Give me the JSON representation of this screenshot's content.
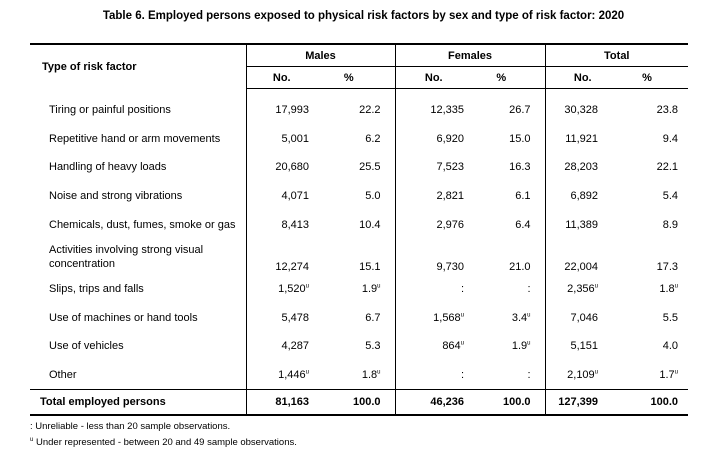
{
  "title": "Table 6. Employed persons exposed to physical risk factors by sex and type of risk factor: 2020",
  "header": {
    "row_label": "Type of risk factor",
    "groups": [
      "Males",
      "Females",
      "Total"
    ],
    "no": "No.",
    "pct": "%"
  },
  "rows": [
    {
      "label": "Tiring or painful positions",
      "m_no": "17,993",
      "m_pct": "22.2",
      "f_no": "12,335",
      "f_pct": "26.7",
      "t_no": "30,328",
      "t_pct": "23.8"
    },
    {
      "label": "Repetitive hand or arm movements",
      "m_no": "5,001",
      "m_pct": "6.2",
      "f_no": "6,920",
      "f_pct": "15.0",
      "t_no": "11,921",
      "t_pct": "9.4"
    },
    {
      "label": "Handling of heavy loads",
      "m_no": "20,680",
      "m_pct": "25.5",
      "f_no": "7,523",
      "f_pct": "16.3",
      "t_no": "28,203",
      "t_pct": "22.1"
    },
    {
      "label": "Noise and strong vibrations",
      "m_no": "4,071",
      "m_pct": "5.0",
      "f_no": "2,821",
      "f_pct": "6.1",
      "t_no": "6,892",
      "t_pct": "5.4"
    },
    {
      "label": "Chemicals, dust, fumes, smoke or gas",
      "m_no": "8,413",
      "m_pct": "10.4",
      "f_no": "2,976",
      "f_pct": "6.4",
      "t_no": "11,389",
      "t_pct": "8.9"
    },
    {
      "label_line1": "Activities involving strong visual",
      "label_line2": "concentration",
      "m_no": "12,274",
      "m_pct": "15.1",
      "f_no": "9,730",
      "f_pct": "21.0",
      "t_no": "22,004",
      "t_pct": "17.3"
    },
    {
      "label": "Slips, trips and falls",
      "m_no": "1,520",
      "m_pct": "1.9",
      "f_no": ":",
      "f_pct": ":",
      "t_no": "2,356",
      "t_pct": "1.8"
    },
    {
      "label": "Use of machines or hand tools",
      "m_no": "5,478",
      "m_pct": "6.7",
      "f_no": "1,568",
      "f_pct": "3.4",
      "t_no": "7,046",
      "t_pct": "5.5"
    },
    {
      "label": "Use of vehicles",
      "m_no": "4,287",
      "m_pct": "5.3",
      "f_no": "864",
      "f_pct": "1.9",
      "t_no": "5,151",
      "t_pct": "4.0"
    },
    {
      "label": "Other",
      "m_no": "1,446",
      "m_pct": "1.8",
      "f_no": ":",
      "f_pct": ":",
      "t_no": "2,109",
      "t_pct": "1.7"
    }
  ],
  "total": {
    "label": "Total employed persons",
    "m_no": "81,163",
    "m_pct": "100.0",
    "f_no": "46,236",
    "f_pct": "100.0",
    "t_no": "127,399",
    "t_pct": "100.0"
  },
  "flag": "u",
  "notes": {
    "unreliable": ": Unreliable - less than 20 sample observations.",
    "under_marker": "u",
    "under": " Under represented - between 20 and 49 sample observations."
  }
}
